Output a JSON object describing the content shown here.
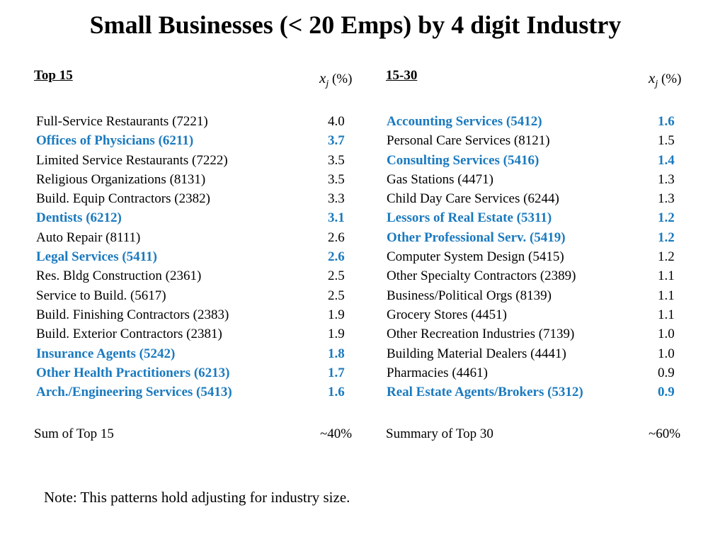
{
  "title": "Small Businesses (< 20 Emps) by 4 digit Industry",
  "colors": {
    "highlight": "#1a7abf",
    "text": "#000000",
    "background": "#ffffff"
  },
  "left": {
    "heading": "Top 15",
    "xj_label": {
      "var": "x",
      "sub": "j",
      "unit": "(%)"
    },
    "rows": [
      {
        "name": "Full-Service Restaurants (7221)",
        "value": "4.0",
        "highlight": false
      },
      {
        "name": "Offices of Physicians (6211)",
        "value": "3.7",
        "highlight": true
      },
      {
        "name": "Limited Service Restaurants (7222)",
        "value": "3.5",
        "highlight": false
      },
      {
        "name": "Religious Organizations (8131)",
        "value": "3.5",
        "highlight": false
      },
      {
        "name": "Build. Equip Contractors (2382)",
        "value": "3.3",
        "highlight": false
      },
      {
        "name": "Dentists (6212)",
        "value": "3.1",
        "highlight": true
      },
      {
        "name": "Auto Repair (8111)",
        "value": "2.6",
        "highlight": false
      },
      {
        "name": "Legal Services (5411)",
        "value": "2.6",
        "highlight": true
      },
      {
        "name": "Res. Bldg Construction (2361)",
        "value": "2.5",
        "highlight": false
      },
      {
        "name": "Service to Build. (5617)",
        "value": "2.5",
        "highlight": false
      },
      {
        "name": "Build. Finishing Contractors (2383)",
        "value": "1.9",
        "highlight": false
      },
      {
        "name": "Build. Exterior Contractors (2381)",
        "value": "1.9",
        "highlight": false
      },
      {
        "name": "Insurance Agents (5242)",
        "value": "1.8",
        "highlight": true
      },
      {
        "name": "Other Health Practitioners (6213)",
        "value": "1.7",
        "highlight": true
      },
      {
        "name": "Arch./Engineering Services (5413)",
        "value": "1.6",
        "highlight": true
      }
    ],
    "summary_label": "Sum of Top 15",
    "summary_value": "~40%"
  },
  "right": {
    "heading": "15-30",
    "xj_label": {
      "var": "x",
      "sub": "j",
      "unit": "(%)"
    },
    "rows": [
      {
        "name": "Accounting Services (5412)",
        "value": "1.6",
        "highlight": true
      },
      {
        "name": "Personal Care Services (8121)",
        "value": "1.5",
        "highlight": false
      },
      {
        "name": "Consulting Services (5416)",
        "value": "1.4",
        "highlight": true
      },
      {
        "name": "Gas Stations (4471)",
        "value": "1.3",
        "highlight": false
      },
      {
        "name": "Child Day Care Services (6244)",
        "value": "1.3",
        "highlight": false
      },
      {
        "name": "Lessors of Real Estate (5311)",
        "value": "1.2",
        "highlight": true
      },
      {
        "name": "Other Professional Serv. (5419)",
        "value": "1.2",
        "highlight": true
      },
      {
        "name": "Computer System Design (5415)",
        "value": "1.2",
        "highlight": false
      },
      {
        "name": "Other Specialty Contractors (2389)",
        "value": "1.1",
        "highlight": false
      },
      {
        "name": "Business/Political Orgs (8139)",
        "value": "1.1",
        "highlight": false
      },
      {
        "name": "Grocery Stores (4451)",
        "value": "1.1",
        "highlight": false
      },
      {
        "name": "Other Recreation Industries (7139)",
        "value": "1.0",
        "highlight": false
      },
      {
        "name": "Building Material Dealers (4441)",
        "value": "1.0",
        "highlight": false
      },
      {
        "name": "Pharmacies (4461)",
        "value": "0.9",
        "highlight": false
      },
      {
        "name": "Real Estate Agents/Brokers (5312)",
        "value": "0.9",
        "highlight": true
      }
    ],
    "summary_label": "Summary of Top 30",
    "summary_value": "~60%"
  },
  "note": "Note:   This patterns hold adjusting for industry size."
}
